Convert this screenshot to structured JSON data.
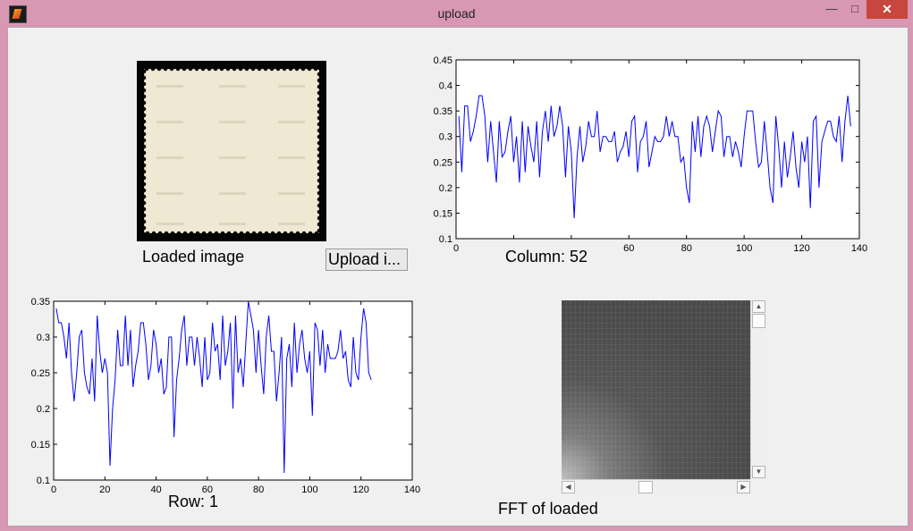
{
  "window": {
    "title": "upload",
    "min_glyph": "—",
    "max_glyph": "□",
    "close_glyph": "✕"
  },
  "loaded_image": {
    "label": "Loaded image"
  },
  "upload_button": {
    "label": "Upload i..."
  },
  "column_plot": {
    "label": "Column: 52"
  },
  "row_plot": {
    "label": "Row: 1"
  },
  "fft": {
    "label": "FFT of loaded"
  },
  "chart_data": [
    {
      "type": "line",
      "title": "",
      "color": "#0000ff",
      "xlim": [
        0,
        140
      ],
      "ylim": [
        0.1,
        0.45
      ],
      "xticks": [
        0,
        20,
        40,
        60,
        80,
        100,
        120,
        140
      ],
      "yticks": [
        0.1,
        0.15,
        0.2,
        0.25,
        0.3,
        0.35,
        0.4,
        0.45
      ],
      "xtick_labels": [
        "0",
        "",
        "",
        "60",
        "80",
        "100",
        "120",
        "140"
      ],
      "ytick_labels": [
        "0.1",
        "0.15",
        "0.2",
        "0.25",
        "0.3",
        "0.35",
        "0.4",
        "0.45"
      ],
      "y": [
        0.34,
        0.23,
        0.36,
        0.36,
        0.29,
        0.31,
        0.34,
        0.38,
        0.38,
        0.34,
        0.25,
        0.33,
        0.27,
        0.21,
        0.33,
        0.26,
        0.27,
        0.31,
        0.34,
        0.25,
        0.3,
        0.21,
        0.33,
        0.23,
        0.32,
        0.28,
        0.25,
        0.33,
        0.22,
        0.31,
        0.35,
        0.29,
        0.36,
        0.3,
        0.32,
        0.36,
        0.32,
        0.22,
        0.32,
        0.27,
        0.14,
        0.26,
        0.32,
        0.25,
        0.28,
        0.33,
        0.3,
        0.3,
        0.35,
        0.27,
        0.3,
        0.3,
        0.29,
        0.29,
        0.31,
        0.25,
        0.27,
        0.28,
        0.31,
        0.26,
        0.33,
        0.34,
        0.23,
        0.29,
        0.3,
        0.33,
        0.24,
        0.27,
        0.3,
        0.29,
        0.29,
        0.3,
        0.34,
        0.3,
        0.33,
        0.3,
        0.3,
        0.25,
        0.26,
        0.2,
        0.17,
        0.33,
        0.27,
        0.34,
        0.26,
        0.32,
        0.34,
        0.32,
        0.27,
        0.31,
        0.35,
        0.34,
        0.26,
        0.3,
        0.3,
        0.26,
        0.29,
        0.27,
        0.24,
        0.3,
        0.35,
        0.35,
        0.35,
        0.29,
        0.24,
        0.25,
        0.33,
        0.27,
        0.2,
        0.17,
        0.34,
        0.28,
        0.2,
        0.29,
        0.22,
        0.26,
        0.31,
        0.24,
        0.2,
        0.29,
        0.25,
        0.3,
        0.16,
        0.33,
        0.34,
        0.2,
        0.29,
        0.31,
        0.33,
        0.33,
        0.3,
        0.29,
        0.34,
        0.25,
        0.33,
        0.38,
        0.32
      ]
    },
    {
      "type": "line",
      "title": "",
      "color": "#0000ff",
      "xlim": [
        0,
        140
      ],
      "ylim": [
        0.1,
        0.35
      ],
      "xticks": [
        0,
        20,
        40,
        60,
        80,
        100,
        120,
        140
      ],
      "yticks": [
        0.1,
        0.15,
        0.2,
        0.25,
        0.3,
        0.35
      ],
      "xtick_labels": [
        "0",
        "20",
        "40",
        "60",
        "80",
        "100",
        "120",
        "140"
      ],
      "ytick_labels": [
        "0.1",
        "0.15",
        "0.2",
        "0.25",
        "0.3",
        "0.35"
      ],
      "y": [
        0.34,
        0.32,
        0.32,
        0.3,
        0.27,
        0.32,
        0.25,
        0.21,
        0.25,
        0.3,
        0.31,
        0.25,
        0.23,
        0.22,
        0.27,
        0.21,
        0.33,
        0.28,
        0.25,
        0.27,
        0.25,
        0.12,
        0.2,
        0.24,
        0.31,
        0.26,
        0.26,
        0.33,
        0.26,
        0.31,
        0.23,
        0.26,
        0.28,
        0.32,
        0.32,
        0.29,
        0.24,
        0.26,
        0.31,
        0.29,
        0.25,
        0.27,
        0.22,
        0.23,
        0.3,
        0.3,
        0.16,
        0.24,
        0.27,
        0.31,
        0.33,
        0.26,
        0.3,
        0.3,
        0.26,
        0.3,
        0.27,
        0.23,
        0.3,
        0.24,
        0.25,
        0.32,
        0.28,
        0.29,
        0.24,
        0.33,
        0.26,
        0.28,
        0.32,
        0.2,
        0.33,
        0.25,
        0.27,
        0.23,
        0.29,
        0.35,
        0.33,
        0.31,
        0.25,
        0.31,
        0.26,
        0.22,
        0.3,
        0.33,
        0.28,
        0.28,
        0.21,
        0.25,
        0.3,
        0.11,
        0.27,
        0.29,
        0.23,
        0.32,
        0.25,
        0.29,
        0.31,
        0.27,
        0.25,
        0.28,
        0.19,
        0.32,
        0.31,
        0.26,
        0.31,
        0.25,
        0.29,
        0.27,
        0.27,
        0.27,
        0.28,
        0.31,
        0.27,
        0.28,
        0.24,
        0.23,
        0.3,
        0.25,
        0.24,
        0.3,
        0.34,
        0.32,
        0.25,
        0.24
      ]
    }
  ]
}
